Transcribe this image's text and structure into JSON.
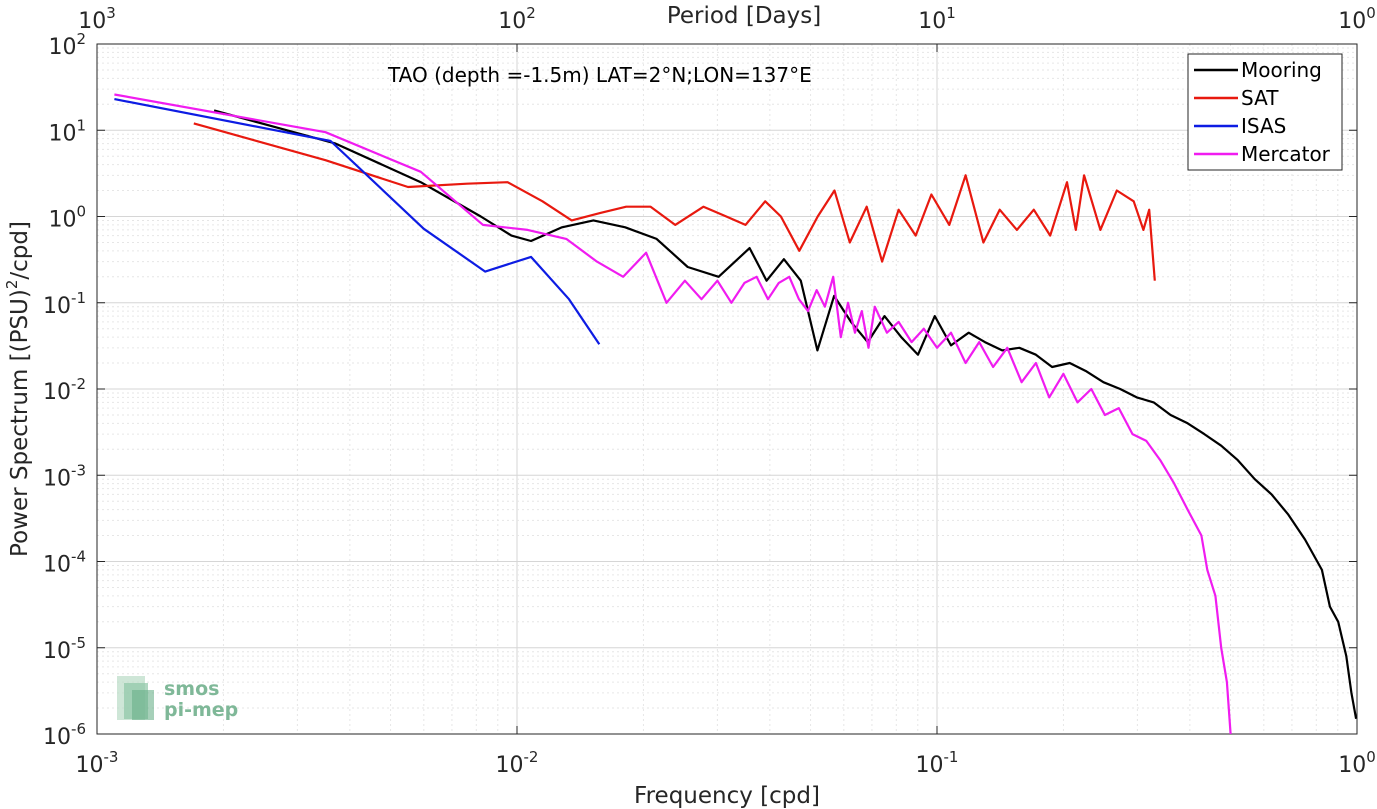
{
  "chart_data": {
    "type": "line",
    "title": "TAO (depth =-1.5m) LAT=2°N;LON=137°E",
    "xlabel": "Frequency [cpd]",
    "ylabel": "Power Spectrum [(PSU)²/cpd]",
    "top_axis_label": "Period [Days]",
    "x_scale": "log",
    "y_scale": "log",
    "xlim": [
      0.001,
      1
    ],
    "ylim": [
      1e-06,
      100
    ],
    "grid": true,
    "legend_position": "top-right",
    "x_tick_labels": [
      "10^-3",
      "10^-2",
      "10^-1",
      "10^0"
    ],
    "top_tick_labels": [
      "10^3",
      "10^2",
      "10^1",
      "10^0"
    ],
    "y_tick_labels": [
      "10^-6",
      "10^-5",
      "10^-4",
      "10^-3",
      "10^-2",
      "10^-1",
      "10^0",
      "10^1",
      "10^2"
    ],
    "logo": {
      "line1": "smos",
      "line2": "pi-mep"
    },
    "series": [
      {
        "name": "Mooring",
        "color": "#000000",
        "x": [
          0.0019,
          0.0037,
          0.0059,
          0.0082,
          0.0097,
          0.0108,
          0.0128,
          0.0152,
          0.0181,
          0.0215,
          0.0255,
          0.0302,
          0.0358,
          0.0393,
          0.0432,
          0.0474,
          0.0519,
          0.0569,
          0.0624,
          0.0684,
          0.075,
          0.0822,
          0.0901,
          0.0988,
          0.108,
          0.119,
          0.13,
          0.143,
          0.157,
          0.172,
          0.188,
          0.207,
          0.227,
          0.249,
          0.273,
          0.299,
          0.328,
          0.36,
          0.395,
          0.433,
          0.475,
          0.52,
          0.571,
          0.626,
          0.686,
          0.752,
          0.825,
          0.862,
          0.902,
          0.943,
          0.97,
          0.995
        ],
        "y": [
          17,
          7,
          2.5,
          1.0,
          0.6,
          0.52,
          0.75,
          0.9,
          0.75,
          0.55,
          0.26,
          0.2,
          0.43,
          0.18,
          0.32,
          0.18,
          0.028,
          0.12,
          0.06,
          0.035,
          0.07,
          0.04,
          0.025,
          0.07,
          0.032,
          0.045,
          0.035,
          0.028,
          0.03,
          0.025,
          0.018,
          0.02,
          0.016,
          0.012,
          0.01,
          0.008,
          0.007,
          0.005,
          0.004,
          0.003,
          0.0022,
          0.0015,
          0.0009,
          0.0006,
          0.00035,
          0.00018,
          8e-05,
          3e-05,
          2e-05,
          8e-06,
          3e-06,
          1.5e-06
        ]
      },
      {
        "name": "SAT",
        "color": "#e8190f",
        "x": [
          0.0017,
          0.0035,
          0.0055,
          0.0076,
          0.0095,
          0.0115,
          0.0135,
          0.0158,
          0.0182,
          0.0208,
          0.0238,
          0.0278,
          0.0315,
          0.035,
          0.039,
          0.0425,
          0.047,
          0.052,
          0.057,
          0.062,
          0.068,
          0.074,
          0.081,
          0.089,
          0.097,
          0.107,
          0.117,
          0.129,
          0.141,
          0.155,
          0.17,
          0.186,
          0.204,
          0.214,
          0.224,
          0.245,
          0.268,
          0.294,
          0.31,
          0.32,
          0.33
        ],
        "y": [
          12,
          4.5,
          2.2,
          2.4,
          2.5,
          1.5,
          0.9,
          1.1,
          1.3,
          1.3,
          0.8,
          1.3,
          1.0,
          0.8,
          1.5,
          1.0,
          0.4,
          1.0,
          2.0,
          0.5,
          1.3,
          0.3,
          1.2,
          0.6,
          1.8,
          0.8,
          3.0,
          0.5,
          1.2,
          0.7,
          1.2,
          0.6,
          2.5,
          0.7,
          3.0,
          0.7,
          2.0,
          1.5,
          0.7,
          1.2,
          0.18
        ]
      },
      {
        "name": "ISAS",
        "color": "#0d1ce3",
        "x": [
          0.0011,
          0.0036,
          0.006,
          0.0084,
          0.0108,
          0.0133,
          0.0157
        ],
        "y": [
          23,
          7.5,
          0.72,
          0.23,
          0.34,
          0.11,
          0.033
        ]
      },
      {
        "name": "Mercator",
        "color": "#f01cf0",
        "x": [
          0.0011,
          0.0035,
          0.0059,
          0.0083,
          0.0106,
          0.0131,
          0.0155,
          0.0179,
          0.0203,
          0.0227,
          0.0251,
          0.0275,
          0.03,
          0.0324,
          0.0348,
          0.0372,
          0.0396,
          0.042,
          0.0445,
          0.0469,
          0.0493,
          0.0517,
          0.0541,
          0.0566,
          0.059,
          0.0614,
          0.0638,
          0.0662,
          0.0687,
          0.0711,
          0.076,
          0.081,
          0.087,
          0.093,
          0.1,
          0.108,
          0.117,
          0.126,
          0.136,
          0.147,
          0.159,
          0.172,
          0.185,
          0.2,
          0.216,
          0.233,
          0.251,
          0.271,
          0.292,
          0.315,
          0.34,
          0.367,
          0.395,
          0.426,
          0.44,
          0.46,
          0.475,
          0.49,
          0.5
        ],
        "y": [
          26,
          9.5,
          3.3,
          0.8,
          0.7,
          0.55,
          0.3,
          0.2,
          0.38,
          0.1,
          0.18,
          0.11,
          0.18,
          0.1,
          0.17,
          0.2,
          0.11,
          0.17,
          0.2,
          0.11,
          0.08,
          0.14,
          0.09,
          0.2,
          0.04,
          0.1,
          0.045,
          0.08,
          0.03,
          0.09,
          0.045,
          0.06,
          0.035,
          0.05,
          0.03,
          0.045,
          0.02,
          0.035,
          0.018,
          0.03,
          0.012,
          0.02,
          0.008,
          0.015,
          0.007,
          0.01,
          0.005,
          0.006,
          0.003,
          0.0025,
          0.0015,
          0.0008,
          0.0004,
          0.0002,
          8e-05,
          4e-05,
          1e-05,
          4e-06,
          1e-06
        ]
      }
    ]
  }
}
